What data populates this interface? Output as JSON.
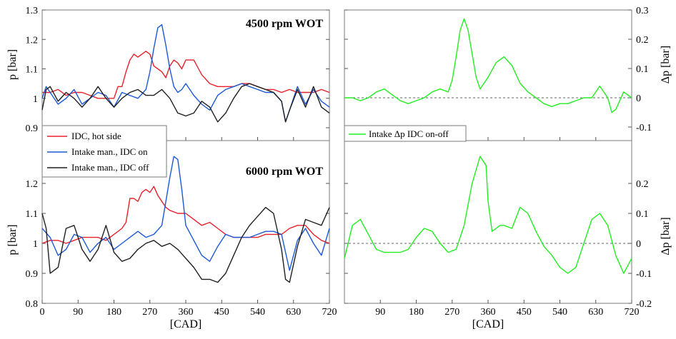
{
  "colors": {
    "idc_hot": "#e8212b",
    "intake_on": "#1c58d6",
    "intake_off": "#1f1f1f",
    "delta": "#22ee22",
    "zero_line": "#333333"
  },
  "legend": {
    "left": [
      "IDC, hot side",
      "Intake man., IDC on",
      "Intake man., IDC off"
    ],
    "right": "Intake Δp IDC on-off"
  },
  "chart_data": [
    {
      "type": "line",
      "panel": "top-left",
      "title": "4500 rpm WOT",
      "xlabel": "",
      "ylabel": "p [bar]",
      "xlim": [
        0,
        720
      ],
      "ylim": [
        0.85,
        1.3
      ],
      "yticks": [
        0.9,
        1,
        1.1,
        1.2,
        1.3
      ],
      "grid": false,
      "series": [
        {
          "name": "IDC, hot side",
          "x": [
            0,
            20,
            40,
            60,
            80,
            100,
            120,
            140,
            160,
            180,
            190,
            200,
            210,
            220,
            230,
            240,
            250,
            260,
            270,
            280,
            290,
            300,
            310,
            320,
            330,
            340,
            350,
            360,
            380,
            400,
            420,
            440,
            460,
            480,
            500,
            520,
            540,
            560,
            580,
            600,
            620,
            640,
            660,
            680,
            700,
            720
          ],
          "y": [
            1.02,
            1.02,
            1.03,
            1.01,
            1.02,
            1.02,
            1.01,
            1.0,
            1.0,
            1.0,
            1.04,
            1.04,
            1.09,
            1.13,
            1.15,
            1.14,
            1.15,
            1.16,
            1.15,
            1.11,
            1.1,
            1.09,
            1.07,
            1.11,
            1.13,
            1.12,
            1.1,
            1.13,
            1.13,
            1.08,
            1.05,
            1.04,
            1.04,
            1.04,
            1.05,
            1.05,
            1.04,
            1.03,
            1.03,
            1.02,
            1.03,
            1.02,
            1.02,
            1.02,
            1.03,
            1.02
          ]
        },
        {
          "name": "Intake man., IDC on",
          "x": [
            0,
            10,
            20,
            40,
            60,
            80,
            100,
            120,
            140,
            160,
            180,
            200,
            220,
            240,
            260,
            270,
            280,
            290,
            300,
            310,
            320,
            330,
            340,
            350,
            360,
            380,
            400,
            420,
            440,
            460,
            480,
            500,
            520,
            540,
            560,
            580,
            600,
            610,
            620,
            640,
            660,
            680,
            700,
            720
          ],
          "y": [
            1.0,
            1.04,
            1.02,
            0.98,
            1.0,
            1.03,
            0.98,
            1.0,
            1.02,
            1.01,
            0.97,
            1.02,
            1.01,
            1.0,
            1.03,
            1.09,
            1.17,
            1.24,
            1.25,
            1.18,
            1.1,
            1.04,
            1.02,
            1.03,
            1.05,
            1.01,
            0.98,
            0.96,
            1.01,
            1.03,
            1.04,
            1.05,
            1.04,
            1.03,
            1.02,
            1.02,
            0.99,
            0.92,
            0.96,
            1.04,
            0.98,
            1.03,
            0.99,
            0.97
          ]
        },
        {
          "name": "Intake man., IDC off",
          "x": [
            0,
            10,
            20,
            40,
            60,
            80,
            100,
            120,
            140,
            160,
            180,
            200,
            220,
            240,
            260,
            280,
            300,
            320,
            340,
            360,
            380,
            400,
            420,
            440,
            460,
            480,
            500,
            520,
            540,
            560,
            580,
            600,
            610,
            620,
            640,
            660,
            680,
            700,
            720
          ],
          "y": [
            0.96,
            1.03,
            1.04,
            0.99,
            1.02,
            1.0,
            0.97,
            1.0,
            1.04,
            1.0,
            0.97,
            1.0,
            1.02,
            1.03,
            1.01,
            1.01,
            1.03,
            1.0,
            0.95,
            0.94,
            0.95,
            0.99,
            0.97,
            0.92,
            0.95,
            1.0,
            1.04,
            1.05,
            1.04,
            1.03,
            1.02,
            0.99,
            0.92,
            0.96,
            1.03,
            0.97,
            1.04,
            0.97,
            0.95
          ]
        }
      ]
    },
    {
      "type": "line",
      "panel": "bottom-left",
      "title": "6000 rpm WOT",
      "xlabel": "[CAD]",
      "ylabel": "p [bar]",
      "xlim": [
        0,
        720
      ],
      "ylim": [
        0.8,
        1.3
      ],
      "yticks": [
        0.8,
        0.9,
        1,
        1.1,
        1.2
      ],
      "xticks": [
        0,
        90,
        180,
        270,
        360,
        450,
        540,
        630,
        720
      ],
      "grid": false,
      "series": [
        {
          "name": "IDC, hot side",
          "x": [
            0,
            20,
            40,
            60,
            80,
            100,
            120,
            140,
            160,
            180,
            200,
            210,
            220,
            230,
            240,
            250,
            260,
            270,
            280,
            290,
            300,
            310,
            320,
            340,
            360,
            380,
            400,
            420,
            440,
            460,
            480,
            500,
            520,
            540,
            560,
            580,
            600,
            620,
            640,
            660,
            680,
            700,
            720
          ],
          "y": [
            1.0,
            1.01,
            1.01,
            1.0,
            1.01,
            1.02,
            1.02,
            1.02,
            1.01,
            1.03,
            1.05,
            1.07,
            1.15,
            1.15,
            1.14,
            1.17,
            1.18,
            1.17,
            1.19,
            1.16,
            1.14,
            1.12,
            1.11,
            1.1,
            1.1,
            1.08,
            1.06,
            1.07,
            1.05,
            1.03,
            1.02,
            1.02,
            1.02,
            1.02,
            1.03,
            1.03,
            1.03,
            1.05,
            1.06,
            1.06,
            1.03,
            1.01,
            1.0
          ]
        },
        {
          "name": "Intake man., IDC on",
          "x": [
            0,
            20,
            40,
            60,
            80,
            100,
            120,
            140,
            160,
            180,
            200,
            220,
            240,
            260,
            280,
            300,
            310,
            320,
            330,
            340,
            350,
            360,
            380,
            400,
            420,
            440,
            460,
            480,
            500,
            520,
            540,
            560,
            580,
            600,
            620,
            640,
            660,
            680,
            700,
            720
          ],
          "y": [
            1.05,
            1.02,
            0.96,
            0.98,
            1.03,
            1.02,
            0.97,
            1.0,
            1.02,
            0.98,
            1.0,
            1.02,
            1.04,
            1.02,
            1.03,
            1.06,
            1.14,
            1.22,
            1.29,
            1.28,
            1.18,
            1.06,
            1.01,
            0.96,
            0.94,
            0.99,
            1.03,
            1.02,
            1.02,
            1.02,
            1.03,
            1.04,
            1.04,
            1.03,
            0.91,
            1.01,
            1.05,
            1.0,
            0.96,
            1.05
          ]
        },
        {
          "name": "Intake man., IDC off",
          "x": [
            0,
            10,
            20,
            40,
            60,
            80,
            100,
            120,
            140,
            160,
            180,
            200,
            220,
            240,
            260,
            280,
            300,
            320,
            340,
            360,
            380,
            400,
            420,
            440,
            460,
            480,
            500,
            520,
            540,
            560,
            580,
            600,
            610,
            620,
            640,
            660,
            680,
            700,
            720
          ],
          "y": [
            1.1,
            1.05,
            0.9,
            0.92,
            1.05,
            1.06,
            0.98,
            0.94,
            0.98,
            1.06,
            0.97,
            0.94,
            0.95,
            0.98,
            1.0,
            1.01,
            0.99,
            1.0,
            0.98,
            0.95,
            0.92,
            0.88,
            0.88,
            0.87,
            0.9,
            0.96,
            1.02,
            1.06,
            1.09,
            1.12,
            1.1,
            0.98,
            0.88,
            0.87,
            0.99,
            1.08,
            1.07,
            1.06,
            1.12
          ]
        }
      ]
    },
    {
      "type": "line",
      "panel": "top-right",
      "xlabel": "",
      "ylabel": "Δp [bar]",
      "xlim": [
        0,
        720
      ],
      "ylim": [
        -0.2,
        0.3
      ],
      "yticks": [
        -0.1,
        0,
        0.1,
        0.2,
        0.3
      ],
      "zero_line": true,
      "series": [
        {
          "name": "Intake Δp IDC on-off",
          "x": [
            0,
            20,
            40,
            60,
            80,
            100,
            120,
            140,
            160,
            180,
            200,
            220,
            240,
            260,
            270,
            280,
            290,
            300,
            310,
            320,
            330,
            340,
            350,
            360,
            380,
            400,
            420,
            440,
            460,
            480,
            500,
            520,
            540,
            560,
            580,
            600,
            620,
            640,
            660,
            670,
            680,
            700,
            720
          ],
          "y": [
            0.0,
            0.0,
            -0.01,
            0.0,
            0.02,
            0.03,
            0.01,
            -0.01,
            -0.02,
            -0.01,
            0.0,
            0.02,
            0.03,
            0.02,
            0.06,
            0.14,
            0.23,
            0.27,
            0.23,
            0.15,
            0.07,
            0.03,
            0.05,
            0.07,
            0.12,
            0.14,
            0.11,
            0.05,
            0.02,
            0.0,
            -0.02,
            -0.03,
            -0.02,
            -0.02,
            -0.01,
            0.0,
            0.0,
            0.04,
            0.0,
            -0.05,
            -0.04,
            0.02,
            0.0
          ]
        }
      ]
    },
    {
      "type": "line",
      "panel": "bottom-right",
      "xlabel": "[CAD]",
      "ylabel": "Δp [bar]",
      "xlim": [
        0,
        720
      ],
      "ylim": [
        -0.2,
        0.3
      ],
      "yticks": [
        -0.2,
        -0.1,
        0,
        0.1,
        0.2
      ],
      "xticks": [
        90,
        180,
        270,
        360,
        450,
        540,
        630,
        720
      ],
      "zero_line": true,
      "series": [
        {
          "name": "Intake Δp IDC on-off",
          "x": [
            0,
            20,
            40,
            60,
            80,
            100,
            120,
            140,
            160,
            180,
            200,
            220,
            240,
            260,
            280,
            300,
            320,
            340,
            355,
            360,
            370,
            380,
            390,
            400,
            420,
            440,
            460,
            480,
            500,
            520,
            540,
            560,
            580,
            600,
            620,
            640,
            660,
            680,
            700,
            720
          ],
          "y": [
            -0.05,
            0.06,
            0.08,
            0.03,
            -0.02,
            -0.03,
            -0.03,
            -0.03,
            -0.02,
            0.02,
            0.05,
            0.04,
            0.0,
            -0.03,
            -0.02,
            0.06,
            0.2,
            0.29,
            0.26,
            0.14,
            0.04,
            0.05,
            0.06,
            0.06,
            0.05,
            0.12,
            0.1,
            0.04,
            -0.01,
            -0.04,
            -0.08,
            -0.1,
            -0.08,
            0.0,
            0.08,
            0.1,
            0.06,
            -0.04,
            -0.1,
            -0.05
          ]
        }
      ]
    }
  ]
}
